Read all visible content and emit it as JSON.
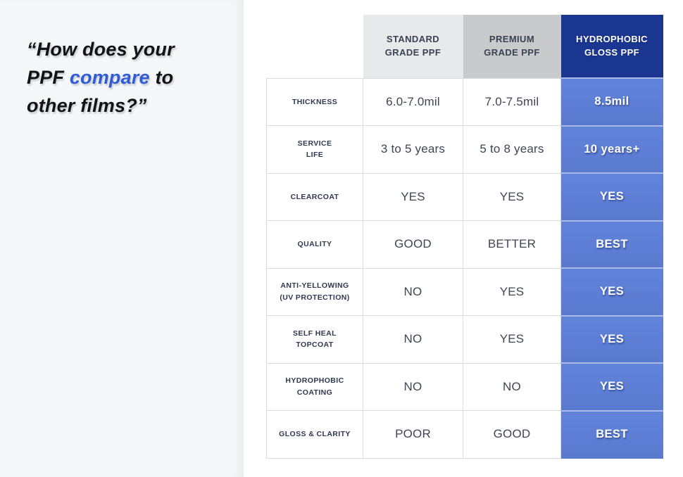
{
  "quote": {
    "prefix": "“How does your\nPPF ",
    "highlight": "compare",
    "suffix": " to\nother films?”",
    "highlight_color": "#2f5bd7"
  },
  "table": {
    "columns": [
      {
        "id": "standard",
        "label": "STANDARD\nGRADE PPF"
      },
      {
        "id": "premium",
        "label": "PREMIUM\nGRADE PPF"
      },
      {
        "id": "hydrophobic",
        "label": "HYDROPHOBIC\nGLOSS PPF"
      }
    ],
    "rows": [
      {
        "label": "THICKNESS",
        "standard": "6.0-7.0mil",
        "premium": "7.0-7.5mil",
        "hydrophobic": "8.5mil"
      },
      {
        "label": "SERVICE\nLIFE",
        "standard": "3 to 5 years",
        "premium": "5 to 8 years",
        "hydrophobic": "10 years+"
      },
      {
        "label": "CLEARCOAT",
        "standard": "YES",
        "premium": "YES",
        "hydrophobic": "YES"
      },
      {
        "label": "QUALITY",
        "standard": "GOOD",
        "premium": "BETTER",
        "hydrophobic": "BEST"
      },
      {
        "label": "ANTI-YELLOWING\n(UV PROTECTION)",
        "standard": "NO",
        "premium": "YES",
        "hydrophobic": "YES"
      },
      {
        "label": "SELF HEAL\nTOPCOAT",
        "standard": "NO",
        "premium": "YES",
        "hydrophobic": "YES"
      },
      {
        "label": "HYDROPHOBIC\nCOATING",
        "standard": "NO",
        "premium": "NO",
        "hydrophobic": "YES"
      },
      {
        "label": "GLOSS & CLARITY",
        "standard": "POOR",
        "premium": "GOOD",
        "hydrophobic": "BEST"
      }
    ]
  },
  "colors": {
    "panel_background": "#f5f6f8",
    "header_standard_bg": "#e8e9ea",
    "header_premium_bg": "#c9cacb",
    "header_hydrophobic_bg": "#1a3691",
    "highlight_column_bg": "#5b7ed5",
    "table_border": "#d9dbdf",
    "dark_text": "#3a4254",
    "quote_highlight": "#2f5bd7"
  },
  "chart_data": {
    "type": "table",
    "columns": [
      "",
      "STANDARD GRADE PPF",
      "PREMIUM GRADE PPF",
      "HYDROPHOBIC GLOSS PPF"
    ],
    "rows": [
      [
        "THICKNESS",
        "6.0-7.0mil",
        "7.0-7.5mil",
        "8.5mil"
      ],
      [
        "SERVICE LIFE",
        "3 to 5 years",
        "5 to 8 years",
        "10 years+"
      ],
      [
        "CLEARCOAT",
        "YES",
        "YES",
        "YES"
      ],
      [
        "QUALITY",
        "GOOD",
        "BETTER",
        "BEST"
      ],
      [
        "ANTI-YELLOWING (UV PROTECTION)",
        "NO",
        "YES",
        "YES"
      ],
      [
        "SELF HEAL TOPCOAT",
        "NO",
        "YES",
        "YES"
      ],
      [
        "HYDROPHOBIC COATING",
        "NO",
        "NO",
        "YES"
      ],
      [
        "GLOSS & CLARITY",
        "POOR",
        "GOOD",
        "BEST"
      ]
    ],
    "title": "“How does your PPF compare to other films?”",
    "legend_position": "none",
    "grid": true,
    "highlighted_column": "HYDROPHOBIC GLOSS PPF"
  }
}
